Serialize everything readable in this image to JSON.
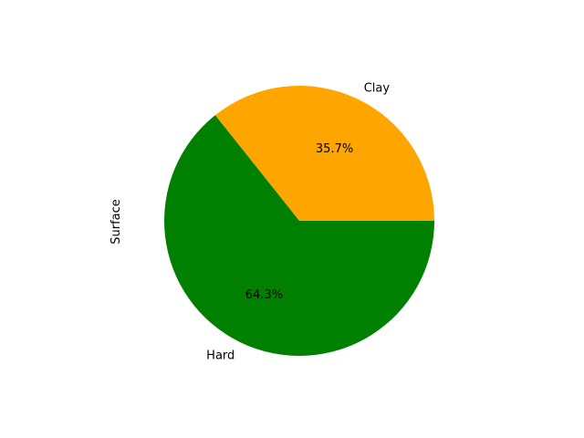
{
  "chart_data": {
    "type": "pie",
    "categories": [
      "Clay",
      "Hard"
    ],
    "values": [
      35.7,
      64.3
    ],
    "percent_labels": [
      "35.7%",
      "64.3%"
    ],
    "colors": [
      "#ffa500",
      "#008000"
    ],
    "ylabel": "Surface",
    "start_angle_deg": 0,
    "direction": "counterclockwise"
  }
}
